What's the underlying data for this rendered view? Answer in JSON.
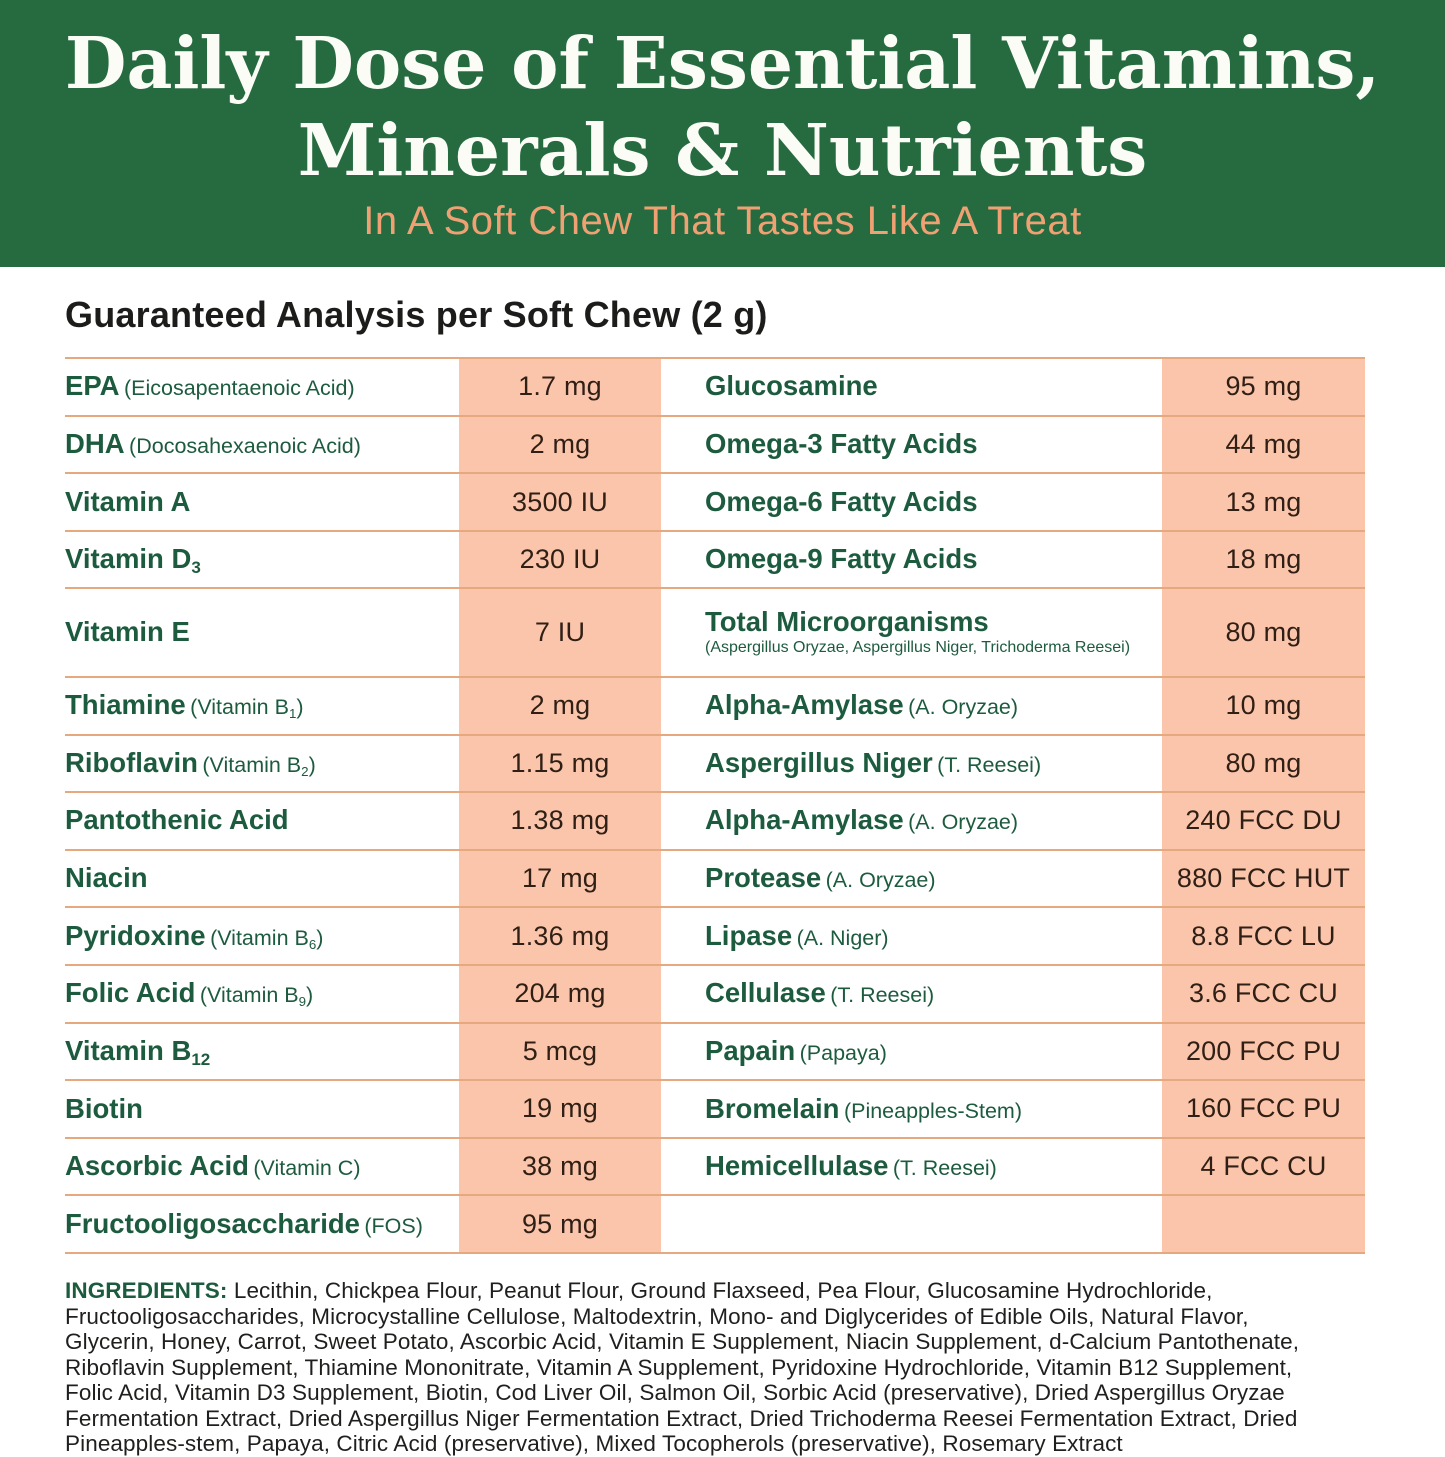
{
  "header": {
    "title": "Daily Dose of Essential Vitamins,\nMinerals & Nutrients",
    "subtitle": "In A Soft Chew That Tastes Like A Treat",
    "background_color": "#266B40",
    "title_color": "#FCFCF7",
    "subtitle_color": "#EFA173"
  },
  "analysis": {
    "heading": "Guaranteed Analysis per Soft Chew (2 g)"
  },
  "table": {
    "accent_color": "#FBC5AC",
    "row_line_color": "#E6A87E",
    "label_color": "#1D5B3F",
    "value_color": "#301F14",
    "left_rows": [
      {
        "name": "EPA",
        "paren": "(Eicosapentaenoic Acid)",
        "value": "1.7 mg"
      },
      {
        "name": "DHA",
        "paren": "(Docosahexaenoic Acid)",
        "value": "2 mg"
      },
      {
        "name": "Vitamin A",
        "paren": "",
        "value": "3500 IU"
      },
      {
        "name": "Vitamin D_{3}",
        "paren": "",
        "value": "230 IU"
      },
      {
        "name": "Vitamin E",
        "paren": "",
        "value": "7 IU"
      },
      {
        "name": "Thiamine",
        "paren": "(Vitamin B_{1})",
        "value": "2 mg"
      },
      {
        "name": "Riboflavin",
        "paren": "(Vitamin B_{2})",
        "value": "1.15 mg"
      },
      {
        "name": "Pantothenic Acid",
        "paren": "",
        "value": "1.38 mg"
      },
      {
        "name": "Niacin",
        "paren": "",
        "value": "17 mg"
      },
      {
        "name": "Pyridoxine",
        "paren": "(Vitamin B_{6})",
        "value": "1.36 mg"
      },
      {
        "name": "Folic Acid",
        "paren": "(Vitamin B_{9})",
        "value": "204 mg"
      },
      {
        "name": "Vitamin B_{12}",
        "paren": "",
        "value": "5 mcg"
      },
      {
        "name": "Biotin",
        "paren": "",
        "value": "19 mg"
      },
      {
        "name": "Ascorbic Acid",
        "paren": "(Vitamin C)",
        "value": "38 mg"
      },
      {
        "name": "Fructooligosaccharide",
        "paren": "(FOS)",
        "value": "95 mg"
      }
    ],
    "right_rows": [
      {
        "name": "Glucosamine",
        "paren": "",
        "value": "95 mg"
      },
      {
        "name": "Omega-3 Fatty Acids",
        "paren": "",
        "value": "44 mg"
      },
      {
        "name": "Omega-6 Fatty Acids",
        "paren": "",
        "value": "13 mg"
      },
      {
        "name": "Omega-9 Fatty Acids",
        "paren": "",
        "value": "18 mg"
      },
      {
        "name": "Total Microorganisms",
        "paren": "(Aspergillus Oryzae, Aspergillus Niger, Trichoderma Reesei)",
        "paren_block": true,
        "value": "80 mg"
      },
      {
        "name": "Alpha-Amylase",
        "paren": "(A. Oryzae)",
        "value": "10 mg"
      },
      {
        "name": "Aspergillus Niger",
        "paren": "(T. Reesei)",
        "value": "80 mg"
      },
      {
        "name": "Alpha-Amylase",
        "paren": "(A. Oryzae)",
        "value": "240 FCC DU"
      },
      {
        "name": "Protease",
        "paren": "(A. Oryzae)",
        "value": "880 FCC HUT"
      },
      {
        "name": "Lipase",
        "paren": "(A. Niger)",
        "value": "8.8 FCC LU"
      },
      {
        "name": "Cellulase",
        "paren": "(T. Reesei)",
        "value": "3.6 FCC CU"
      },
      {
        "name": "Papain",
        "paren": "(Papaya)",
        "value": "200 FCC PU"
      },
      {
        "name": "Bromelain",
        "paren": "(Pineapples-Stem)",
        "value": "160 FCC PU"
      },
      {
        "name": "Hemicellulase",
        "paren": "(T. Reesei)",
        "value": "4 FCC CU"
      },
      {
        "name": "",
        "paren": "",
        "value": ""
      }
    ]
  },
  "ingredients": {
    "label": "INGREDIENTS:",
    "text": "Lecithin, Chickpea Flour, Peanut Flour, Ground Flaxseed, Pea Flour, Glucosamine Hydrochloride,\nFructooligosaccharides, Microcystalline Cellulose, Maltodextrin, Mono- and Diglycerides of Edible Oils, Natural Flavor,\nGlycerin, Honey, Carrot, Sweet Potato, Ascorbic Acid, Vitamin E Supplement, Niacin Supplement, d-Calcium Pantothenate,\nRiboflavin Supplement, Thiamine Mononitrate, Vitamin A Supplement, Pyridoxine Hydrochloride, Vitamin B12 Supplement,\nFolic Acid, Vitamin D3 Supplement, Biotin, Cod Liver Oil, Salmon Oil, Sorbic Acid (preservative), Dried Aspergillus Oryzae\nFermentation Extract, Dried Aspergillus Niger Fermentation Extract, Dried Trichoderma Reesei Fermentation Extract, Dried\nPineapples-stem, Papaya, Citric Acid (preservative), Mixed Tocopherols (preservative), Rosemary Extract"
  }
}
